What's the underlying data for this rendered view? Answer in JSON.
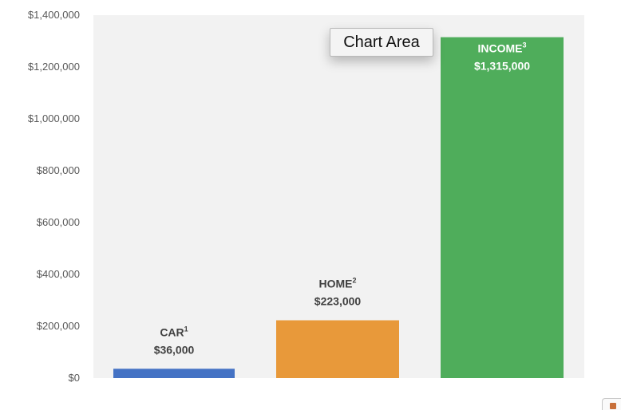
{
  "chart_data": {
    "type": "bar",
    "categories": [
      "CAR",
      "HOME",
      "INCOME"
    ],
    "superscripts": [
      "1",
      "2",
      "3"
    ],
    "values": [
      36000,
      223000,
      1315000
    ],
    "value_labels": [
      "$36,000",
      "$223,000",
      "$1,315,000"
    ],
    "colors": [
      "#4472c4",
      "#e8993a",
      "#4fad5b"
    ],
    "label_colors": [
      "#404040",
      "#404040",
      "#ffffff"
    ],
    "ylim": [
      0,
      1400000
    ],
    "yticks": [
      0,
      200000,
      400000,
      600000,
      800000,
      1000000,
      1200000,
      1400000
    ],
    "ytick_labels": [
      "$0",
      "$200,000",
      "$400,000",
      "$600,000",
      "$800,000",
      "$1,000,000",
      "$1,200,000",
      "$1,400,000"
    ],
    "plot_background": "#f2f2f2",
    "grid": false,
    "title": "",
    "xlabel": "",
    "ylabel": ""
  },
  "tooltip": {
    "text": "Chart Area"
  },
  "corner_icon": {
    "icon": "chart-icon"
  }
}
